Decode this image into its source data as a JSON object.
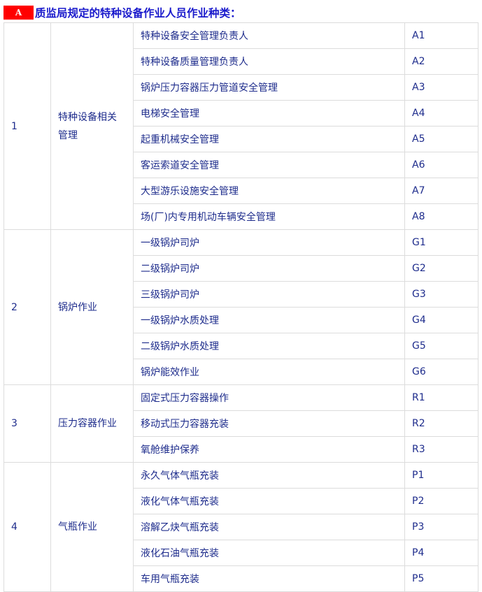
{
  "title": {
    "badge": "A",
    "text": "质监局规定的特种设备作业人员作业种类："
  },
  "groups": [
    {
      "no": "1",
      "name": "特种设备相关管理",
      "items": [
        {
          "name": "特种设备安全管理负责人",
          "code": "A1"
        },
        {
          "name": "特种设备质量管理负责人",
          "code": "A2"
        },
        {
          "name": "锅炉压力容器压力管道安全管理",
          "code": "A3"
        },
        {
          "name": "电梯安全管理",
          "code": "A4"
        },
        {
          "name": "起重机械安全管理",
          "code": "A5"
        },
        {
          "name": "客运索道安全管理",
          "code": "A6"
        },
        {
          "name": "大型游乐设施安全管理",
          "code": "A7"
        },
        {
          "name": "场(厂)内专用机动车辆安全管理",
          "code": "A8"
        }
      ]
    },
    {
      "no": "2",
      "name": "锅炉作业",
      "items": [
        {
          "name": "一级锅炉司炉",
          "code": "G1"
        },
        {
          "name": "二级锅炉司炉",
          "code": "G2"
        },
        {
          "name": "三级锅炉司炉",
          "code": "G3"
        },
        {
          "name": "一级锅炉水质处理",
          "code": "G4"
        },
        {
          "name": "二级锅炉水质处理",
          "code": "G5"
        },
        {
          "name": "锅炉能效作业",
          "code": "G6"
        }
      ]
    },
    {
      "no": "3",
      "name": "压力容器作业",
      "items": [
        {
          "name": "固定式压力容器操作",
          "code": "R1"
        },
        {
          "name": "移动式压力容器充装",
          "code": "R2"
        },
        {
          "name": "氧舱维护保养",
          "code": "R3"
        }
      ]
    },
    {
      "no": "4",
      "name": "气瓶作业",
      "items": [
        {
          "name": "永久气体气瓶充装",
          "code": "P1"
        },
        {
          "name": "液化气体气瓶充装",
          "code": "P2"
        },
        {
          "name": "溶解乙炔气瓶充装",
          "code": "P3"
        },
        {
          "name": "液化石油气瓶充装",
          "code": "P4"
        },
        {
          "name": "车用气瓶充装",
          "code": "P5"
        }
      ]
    }
  ]
}
